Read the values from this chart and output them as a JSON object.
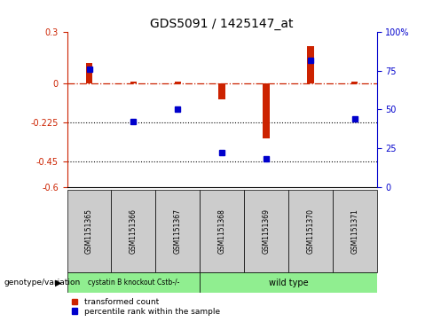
{
  "title": "GDS5091 / 1425147_at",
  "samples": [
    "GSM1151365",
    "GSM1151366",
    "GSM1151367",
    "GSM1151368",
    "GSM1151369",
    "GSM1151370",
    "GSM1151371"
  ],
  "red_bars": [
    0.12,
    0.01,
    0.01,
    -0.09,
    -0.32,
    0.22,
    0.01
  ],
  "blue_dots_right": [
    76,
    42,
    50,
    22,
    18,
    82,
    44
  ],
  "ylim_left": [
    -0.6,
    0.3
  ],
  "ylim_right": [
    0,
    100
  ],
  "yticks_left": [
    0.3,
    0.0,
    -0.225,
    -0.45,
    -0.6
  ],
  "yticks_left_labels": [
    "0.3",
    "0",
    "-0.225",
    "-0.45",
    "-0.6"
  ],
  "yticks_right": [
    100,
    75,
    50,
    25,
    0
  ],
  "yticks_right_labels": [
    "100%",
    "75",
    "50",
    "25",
    "0"
  ],
  "hline0_dotdash": 0.0,
  "hlines_dotted": [
    -0.225,
    -0.45
  ],
  "group1_samples": [
    0,
    1,
    2
  ],
  "group2_samples": [
    3,
    4,
    5,
    6
  ],
  "group1_label": "cystatin B knockout Cstb-/-",
  "group2_label": "wild type",
  "group_label_prefix": "genotype/variation",
  "group1_color": "#90ee90",
  "group2_color": "#90ee90",
  "bar_color": "#cc2200",
  "dot_color": "#0000cc",
  "legend_red_label": "transformed count",
  "legend_blue_label": "percentile rank within the sample",
  "background_color": "#ffffff",
  "tick_bg": "#cccccc",
  "bar_width": 0.15
}
